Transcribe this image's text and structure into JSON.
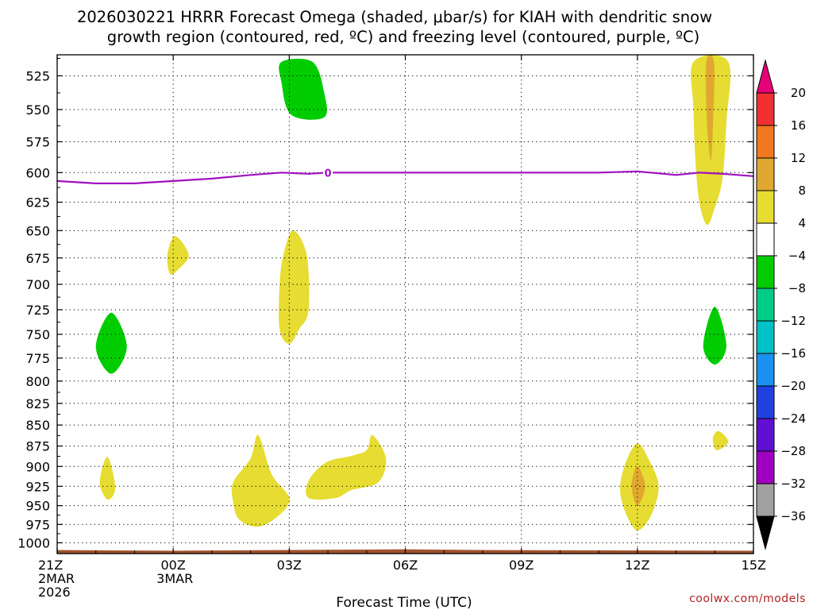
{
  "chart_data": {
    "type": "time-height contour plot",
    "title_line1": "2026030221 HRRR Forecast Omega (shaded, μbar/s) for KIAH with dendritic snow",
    "title_line2": "growth region (contoured, red, ºC) and freezing level (contoured, purple, ºC)",
    "xlabel": "Forecast Time (UTC)",
    "credit": "coolwx.com/models",
    "x_range_hours": [
      0,
      18
    ],
    "y_range_hpa": [
      1015,
      510
    ],
    "y_ticks": [
      525,
      550,
      575,
      600,
      625,
      650,
      675,
      700,
      725,
      750,
      775,
      800,
      825,
      850,
      875,
      900,
      925,
      950,
      975,
      1000
    ],
    "x_ticks": [
      {
        "hour": 0,
        "lines": [
          "21Z",
          "2MAR",
          "2026"
        ]
      },
      {
        "hour": 3,
        "lines": [
          "00Z",
          "3MAR"
        ]
      },
      {
        "hour": 6,
        "lines": [
          "03Z"
        ]
      },
      {
        "hour": 9,
        "lines": [
          "06Z"
        ]
      },
      {
        "hour": 12,
        "lines": [
          "09Z"
        ]
      },
      {
        "hour": 15,
        "lines": [
          "12Z"
        ]
      },
      {
        "hour": 18,
        "lines": [
          "15Z"
        ]
      }
    ],
    "colorbar": {
      "labels": [
        "20",
        "16",
        "12",
        "8",
        "4",
        "−4",
        "−8",
        "−12",
        "−16",
        "−20",
        "−24",
        "−28",
        "−32",
        "−36"
      ],
      "bands": [
        {
          "from": 20,
          "to": 24,
          "color": "#e8007a"
        },
        {
          "from": 16,
          "to": 20,
          "color": "#f03030"
        },
        {
          "from": 12,
          "to": 16,
          "color": "#f07820"
        },
        {
          "from": 8,
          "to": 12,
          "color": "#e0a830"
        },
        {
          "from": 4,
          "to": 8,
          "color": "#e6dc32"
        },
        {
          "from": -4,
          "to": 4,
          "color": "#ffffff"
        },
        {
          "from": -8,
          "to": -4,
          "color": "#00cc00"
        },
        {
          "from": -12,
          "to": -8,
          "color": "#00cc88"
        },
        {
          "from": -16,
          "to": -12,
          "color": "#00c0c8"
        },
        {
          "from": -20,
          "to": -16,
          "color": "#1a90f0"
        },
        {
          "from": -24,
          "to": -20,
          "color": "#2040e0"
        },
        {
          "from": -28,
          "to": -24,
          "color": "#6010d0"
        },
        {
          "from": -32,
          "to": -28,
          "color": "#a000c0"
        },
        {
          "from": -36,
          "to": -32,
          "color": "#a0a0a0"
        },
        {
          "from": -40,
          "to": -36,
          "color": "#000000"
        }
      ]
    },
    "freezing_level": {
      "label": "0",
      "label_hour": 7.0,
      "color": "#a010c0",
      "points": [
        [
          0,
          607
        ],
        [
          1,
          609
        ],
        [
          2,
          609
        ],
        [
          3,
          607
        ],
        [
          4,
          605
        ],
        [
          5,
          602
        ],
        [
          5.8,
          600
        ],
        [
          6.5,
          601
        ],
        [
          7,
          600
        ],
        [
          8,
          600
        ],
        [
          9,
          600
        ],
        [
          10,
          600
        ],
        [
          11,
          600
        ],
        [
          12,
          600
        ],
        [
          13,
          600
        ],
        [
          14,
          600
        ],
        [
          15,
          599
        ],
        [
          16,
          602
        ],
        [
          16.6,
          600
        ],
        [
          17.2,
          601
        ],
        [
          18,
          603
        ]
      ]
    },
    "omega_regions": [
      {
        "label": "sinking 4-8 near 14Z 525-640 hPa",
        "value": 4,
        "color": "#e6dc32",
        "points": [
          [
            16.45,
            515
          ],
          [
            17.35,
            515
          ],
          [
            17.3,
            560
          ],
          [
            17.2,
            605
          ],
          [
            17.0,
            630
          ],
          [
            16.8,
            645
          ],
          [
            16.6,
            625
          ],
          [
            16.5,
            590
          ],
          [
            16.45,
            550
          ]
        ]
      },
      {
        "label": "sinking 8-12 near 14Z 525-590 hPa",
        "value": 8,
        "color": "#e0a830",
        "points": [
          [
            16.78,
            515
          ],
          [
            16.98,
            515
          ],
          [
            16.96,
            555
          ],
          [
            16.9,
            590
          ],
          [
            16.8,
            560
          ]
        ]
      },
      {
        "label": "rising near 03Z 515-555 hPa",
        "value": -4,
        "color": "#00cc00",
        "points": [
          [
            5.8,
            515
          ],
          [
            6.6,
            515
          ],
          [
            6.9,
            537
          ],
          [
            6.9,
            556
          ],
          [
            6.05,
            554
          ],
          [
            5.8,
            530
          ]
        ]
      },
      {
        "label": "sinking near 00Z 665 hPa",
        "value": 4,
        "color": "#e6dc32",
        "points": [
          [
            2.85,
            672
          ],
          [
            3.05,
            655
          ],
          [
            3.4,
            672
          ],
          [
            3.15,
            685
          ],
          [
            2.92,
            690
          ]
        ]
      },
      {
        "label": "sinking near 03Z 650-760 hPa",
        "value": 4,
        "color": "#e6dc32",
        "points": [
          [
            5.75,
            700
          ],
          [
            5.85,
            672
          ],
          [
            6.1,
            650
          ],
          [
            6.45,
            672
          ],
          [
            6.5,
            725
          ],
          [
            6.25,
            745
          ],
          [
            6.0,
            760
          ],
          [
            5.75,
            745
          ]
        ]
      },
      {
        "label": "rising near 22Z 750 hPa",
        "value": -4,
        "color": "#00cc00",
        "points": [
          [
            1.0,
            763
          ],
          [
            1.4,
            728
          ],
          [
            1.8,
            763
          ],
          [
            1.4,
            792
          ]
        ]
      },
      {
        "label": "rising near 14Z 750 hPa",
        "value": -4,
        "color": "#00cc00",
        "points": [
          [
            16.7,
            762
          ],
          [
            17.0,
            722
          ],
          [
            17.3,
            762
          ],
          [
            17.0,
            782
          ]
        ]
      },
      {
        "label": "sinking near 14Z 865 hPa",
        "value": 4,
        "color": "#e6dc32",
        "points": [
          [
            16.95,
            866
          ],
          [
            17.1,
            857
          ],
          [
            17.35,
            870
          ],
          [
            17.05,
            880
          ]
        ]
      },
      {
        "label": "sinking near 22Z 915 hPa",
        "value": 4,
        "color": "#e6dc32",
        "points": [
          [
            1.1,
            920
          ],
          [
            1.3,
            888
          ],
          [
            1.5,
            927
          ],
          [
            1.3,
            942
          ]
        ]
      },
      {
        "label": "sinking near 02Z 930 hPa",
        "value": 4,
        "color": "#e6dc32",
        "points": [
          [
            4.55,
            920
          ],
          [
            5.0,
            890
          ],
          [
            5.2,
            862
          ],
          [
            5.55,
            910
          ],
          [
            6.0,
            940
          ],
          [
            5.75,
            962
          ],
          [
            5.2,
            978
          ],
          [
            4.7,
            968
          ],
          [
            4.55,
            945
          ]
        ]
      },
      {
        "label": "sinking near 04Z 900 hPa",
        "value": 4,
        "color": "#e6dc32",
        "points": [
          [
            6.5,
            918
          ],
          [
            6.95,
            895
          ],
          [
            7.6,
            887
          ],
          [
            8.0,
            880
          ],
          [
            8.15,
            862
          ],
          [
            8.5,
            890
          ],
          [
            8.3,
            920
          ],
          [
            7.6,
            930
          ],
          [
            7.2,
            940
          ],
          [
            6.5,
            940
          ]
        ]
      },
      {
        "label": "sinking 4-8 near 12Z 920 hPa",
        "value": 4,
        "color": "#e6dc32",
        "points": [
          [
            14.55,
            928
          ],
          [
            14.7,
            895
          ],
          [
            15.0,
            872
          ],
          [
            15.3,
            892
          ],
          [
            15.55,
            925
          ],
          [
            15.35,
            963
          ],
          [
            15.0,
            983
          ],
          [
            14.7,
            960
          ]
        ]
      },
      {
        "label": "sinking 8-12 near 12Z 925 hPa",
        "value": 8,
        "color": "#e0a830",
        "points": [
          [
            14.85,
            924
          ],
          [
            15.0,
            900
          ],
          [
            15.2,
            925
          ],
          [
            15.0,
            950
          ]
        ]
      }
    ],
    "terrain": {
      "label": "surface",
      "color": "#a0522d",
      "points": [
        [
          0,
          1010
        ],
        [
          3,
          1011
        ],
        [
          9,
          1009
        ],
        [
          11,
          1010
        ],
        [
          18,
          1011
        ]
      ]
    }
  }
}
